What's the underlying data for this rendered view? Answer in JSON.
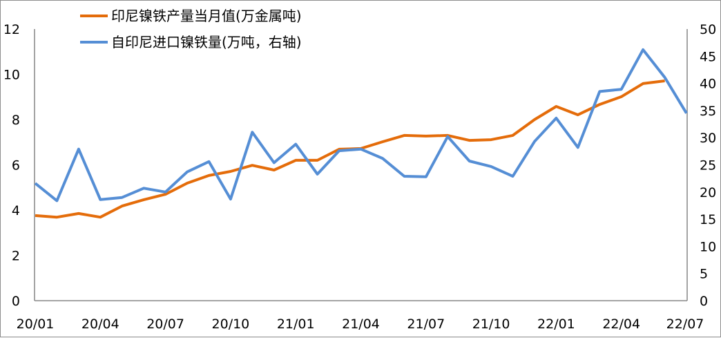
{
  "chart_data": {
    "type": "line",
    "title": "",
    "x": [
      "20/01",
      "20/02",
      "20/03",
      "20/04",
      "20/05",
      "20/06",
      "20/07",
      "20/08",
      "20/09",
      "20/10",
      "20/11",
      "20/12",
      "21/01",
      "21/02",
      "21/03",
      "21/04",
      "21/05",
      "21/06",
      "21/07",
      "21/08",
      "21/09",
      "21/10",
      "21/11",
      "21/12",
      "22/01",
      "22/02",
      "22/03",
      "22/04",
      "22/05",
      "22/06",
      "22/07"
    ],
    "x_tick_labels": [
      "20/01",
      "20/04",
      "20/07",
      "20/10",
      "21/01",
      "21/04",
      "21/07",
      "21/10",
      "22/01",
      "22/04",
      "22/07"
    ],
    "y_left": {
      "range": [
        0,
        12
      ],
      "ticks": [
        "0",
        "2",
        "4",
        "6",
        "8",
        "10",
        "12"
      ]
    },
    "y_right": {
      "range": [
        0,
        50
      ],
      "ticks": [
        "0",
        "5",
        "10",
        "15",
        "20",
        "25",
        "30",
        "35",
        "40",
        "45",
        "50"
      ]
    },
    "grid": false,
    "legend_position": "top-left",
    "series": [
      {
        "name": "印尼镍铁产量当月值(万金属吨)",
        "axis": "left",
        "color": "#E46C0A",
        "values": [
          3.76,
          3.69,
          3.85,
          3.69,
          4.18,
          4.46,
          4.7,
          5.19,
          5.53,
          5.71,
          5.98,
          5.77,
          6.2,
          6.2,
          6.69,
          6.72,
          7.02,
          7.3,
          7.27,
          7.3,
          7.08,
          7.11,
          7.3,
          8.0,
          8.58,
          8.21,
          8.67,
          9.01,
          9.59,
          9.71,
          null
        ]
      },
      {
        "name": "自印尼进口镍铁量(万吨，右轴)",
        "axis": "right",
        "color": "#558ED5",
        "values": [
          21.6,
          18.4,
          27.9,
          18.6,
          19.0,
          20.7,
          20.0,
          23.7,
          25.6,
          18.7,
          31.0,
          25.4,
          28.8,
          23.3,
          27.6,
          27.9,
          26.2,
          22.9,
          22.8,
          30.2,
          25.7,
          24.7,
          22.9,
          29.3,
          33.6,
          28.2,
          38.5,
          38.9,
          46.2,
          41.1,
          34.5
        ]
      }
    ]
  }
}
